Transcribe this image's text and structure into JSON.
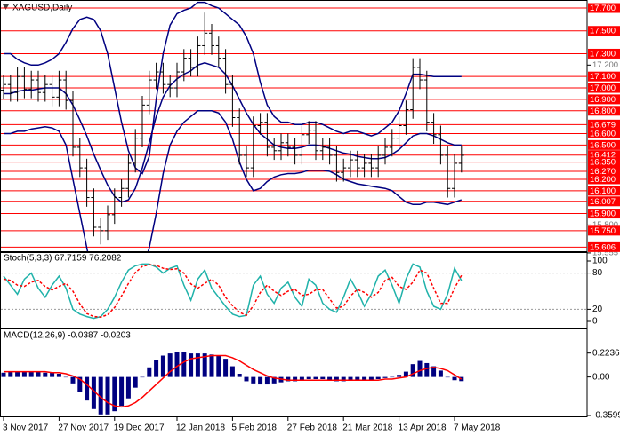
{
  "chart_data": [
    {
      "type": "ohlc",
      "title": "XAGUSD,Daily",
      "color": "#000000",
      "categories": [
        "3 Nov 2017",
        null,
        null,
        null,
        null,
        null,
        null,
        null,
        "27 Nov 2017",
        null,
        null,
        null,
        null,
        null,
        null,
        null,
        "19 Dec 2017",
        null,
        null,
        null,
        null,
        null,
        null,
        null,
        null,
        "12 Jan 2018",
        null,
        null,
        null,
        null,
        null,
        null,
        null,
        "5 Feb 2018",
        null,
        null,
        null,
        null,
        null,
        null,
        null,
        "27 Feb 2018",
        null,
        null,
        null,
        null,
        null,
        null,
        null,
        "21 Mar 2018",
        null,
        null,
        null,
        null,
        null,
        null,
        null,
        "13 Apr 2018",
        null,
        null,
        null,
        null,
        null,
        null,
        null,
        "7 May 2018",
        null
      ],
      "open": [
        16.98,
        17.03,
        16.96,
        17.1,
        16.99,
        17.07,
        16.96,
        17.03,
        16.92,
        17.07,
        16.89,
        16.48,
        16.3,
        16.04,
        15.78,
        15.75,
        15.89,
        16.04,
        16.12,
        16.34,
        16.56,
        16.85,
        17.07,
        17.14,
        17.03,
        17.0,
        17.14,
        17.26,
        17.18,
        17.37,
        17.48,
        17.37,
        17.26,
        17.03,
        16.74,
        16.41,
        16.3,
        16.67,
        16.7,
        16.48,
        16.45,
        16.52,
        16.48,
        16.41,
        16.59,
        16.63,
        16.45,
        16.48,
        16.41,
        16.26,
        16.3,
        16.37,
        16.3,
        16.34,
        16.3,
        16.41,
        16.48,
        16.56,
        16.67,
        16.81,
        17.18,
        17.07,
        16.7,
        16.59,
        16.41,
        16.12,
        16.34
      ],
      "high": [
        17.11,
        17.11,
        17.18,
        17.18,
        17.15,
        17.15,
        17.11,
        17.11,
        17.15,
        17.15,
        16.97,
        16.56,
        16.38,
        16.12,
        15.86,
        15.97,
        16.12,
        16.2,
        16.42,
        16.64,
        16.93,
        17.15,
        17.22,
        17.22,
        17.11,
        17.22,
        17.34,
        17.34,
        17.45,
        17.66,
        17.56,
        17.45,
        17.34,
        17.11,
        16.82,
        16.49,
        16.75,
        16.78,
        16.78,
        16.56,
        16.6,
        16.6,
        16.56,
        16.67,
        16.71,
        16.71,
        16.56,
        16.56,
        16.49,
        16.38,
        16.45,
        16.45,
        16.42,
        16.42,
        16.49,
        16.56,
        16.64,
        16.75,
        16.89,
        17.26,
        17.26,
        17.15,
        16.78,
        16.67,
        16.49,
        16.42,
        16.49
      ],
      "low": [
        16.9,
        16.88,
        16.88,
        16.91,
        16.91,
        16.88,
        16.88,
        16.84,
        16.84,
        16.81,
        16.4,
        16.22,
        15.96,
        15.7,
        15.63,
        15.67,
        15.81,
        15.96,
        16.04,
        16.26,
        16.48,
        16.77,
        16.99,
        16.95,
        16.92,
        16.92,
        17.06,
        17.1,
        17.1,
        17.29,
        17.29,
        17.18,
        16.95,
        16.66,
        16.33,
        16.22,
        16.22,
        16.59,
        16.4,
        16.37,
        16.37,
        16.4,
        16.33,
        16.33,
        16.51,
        16.37,
        16.37,
        16.33,
        16.18,
        16.18,
        16.22,
        16.22,
        16.22,
        16.22,
        16.22,
        16.33,
        16.4,
        16.48,
        16.59,
        16.73,
        16.99,
        16.62,
        16.51,
        16.33,
        16.04,
        16.04,
        16.26
      ],
      "close": [
        17.03,
        16.96,
        17.1,
        16.99,
        17.07,
        16.96,
        17.03,
        16.92,
        17.07,
        16.89,
        16.48,
        16.3,
        16.04,
        15.78,
        15.75,
        15.89,
        16.04,
        16.12,
        16.34,
        16.56,
        16.85,
        17.07,
        17.14,
        17.03,
        17.0,
        17.14,
        17.26,
        17.18,
        17.37,
        17.48,
        17.37,
        17.26,
        17.03,
        16.74,
        16.41,
        16.3,
        16.67,
        16.7,
        16.48,
        16.45,
        16.52,
        16.48,
        16.41,
        16.59,
        16.63,
        16.45,
        16.48,
        16.41,
        16.26,
        16.3,
        16.37,
        16.3,
        16.34,
        16.3,
        16.41,
        16.48,
        16.56,
        16.67,
        16.81,
        17.18,
        17.07,
        16.7,
        16.59,
        16.41,
        16.12,
        16.34,
        16.41
      ],
      "bands": {
        "color": "#000080",
        "upper": [
          17.3,
          17.3,
          17.25,
          17.22,
          17.2,
          17.2,
          17.22,
          17.25,
          17.3,
          17.4,
          17.52,
          17.6,
          17.62,
          17.6,
          17.5,
          17.3,
          17.0,
          16.7,
          16.45,
          16.3,
          16.25,
          16.4,
          16.9,
          17.3,
          17.55,
          17.65,
          17.68,
          17.7,
          17.75,
          17.75,
          17.72,
          17.7,
          17.65,
          17.6,
          17.55,
          17.45,
          17.3,
          17.05,
          16.85,
          16.75,
          16.7,
          16.7,
          16.68,
          16.68,
          16.7,
          16.7,
          16.68,
          16.65,
          16.62,
          16.6,
          16.62,
          16.62,
          16.6,
          16.58,
          16.6,
          16.65,
          16.7,
          16.8,
          16.95,
          17.12,
          17.12,
          17.11,
          17.1,
          17.1,
          17.1,
          17.1,
          17.1
        ],
        "middle": [
          16.95,
          16.95,
          16.97,
          16.98,
          16.98,
          16.99,
          17.0,
          17.0,
          17.0,
          16.95,
          16.85,
          16.72,
          16.58,
          16.42,
          16.28,
          16.15,
          16.05,
          16.0,
          16.02,
          16.12,
          16.3,
          16.52,
          16.75,
          16.92,
          17.02,
          17.08,
          17.12,
          17.15,
          17.2,
          17.22,
          17.2,
          17.18,
          17.12,
          17.02,
          16.9,
          16.78,
          16.68,
          16.6,
          16.55,
          16.5,
          16.48,
          16.47,
          16.47,
          16.48,
          16.5,
          16.5,
          16.49,
          16.47,
          16.45,
          16.43,
          16.42,
          16.4,
          16.39,
          16.38,
          16.38,
          16.39,
          16.42,
          16.46,
          16.52,
          16.58,
          16.6,
          16.6,
          16.58,
          16.55,
          16.52,
          16.5,
          16.5
        ],
        "lower": [
          16.6,
          16.6,
          16.62,
          16.62,
          16.64,
          16.65,
          16.66,
          16.65,
          16.62,
          16.5,
          16.2,
          15.9,
          15.6,
          15.3,
          15.1,
          15.0,
          14.98,
          15.0,
          15.1,
          15.25,
          15.4,
          15.6,
          15.9,
          16.25,
          16.5,
          16.62,
          16.7,
          16.75,
          16.8,
          16.8,
          16.8,
          16.78,
          16.7,
          16.55,
          16.35,
          16.2,
          16.1,
          16.12,
          16.18,
          16.22,
          16.24,
          16.25,
          16.25,
          16.26,
          16.28,
          16.28,
          16.28,
          16.27,
          16.24,
          16.2,
          16.18,
          16.16,
          16.15,
          16.14,
          16.13,
          16.12,
          16.1,
          16.05,
          16.0,
          15.98,
          15.98,
          16.0,
          16.0,
          15.99,
          15.98,
          16.0,
          16.02
        ]
      },
      "level_color": "#ff0000",
      "levels": [
        {
          "value": 17.7,
          "label": "17.700"
        },
        {
          "value": 17.5,
          "label": "17.500"
        },
        {
          "value": 17.3,
          "label": "17.300"
        },
        {
          "value": 17.1,
          "label": "17.100"
        },
        {
          "value": 17,
          "label": "17.000"
        },
        {
          "value": 16.9,
          "label": "16.900"
        },
        {
          "value": 16.8,
          "label": "16.800"
        },
        16.679,
        {
          "value": 16.6,
          "label": "16.600"
        },
        {
          "value": 16.5,
          "label": "16.500"
        },
        16.412,
        {
          "value": 16.35,
          "label": "16.350"
        },
        {
          "value": 16.27,
          "label": "16.270"
        },
        {
          "value": 16.2,
          "label": "16.200"
        },
        {
          "value": 16.1,
          "label": "16.100"
        },
        16.007,
        {
          "value": 15.9,
          "label": "15.900"
        },
        {
          "value": 15.75,
          "label": "15.750"
        },
        15.606
      ],
      "ylim": [
        15.57,
        17.77
      ],
      "yticks": [
        {
          "value": 17.2,
          "label": "17.200"
        },
        {
          "value": 15.8,
          "label": "15.800"
        },
        15.555
      ]
    },
    {
      "type": "stochastic",
      "title": "Stoch(5,3,3) 67.7159 76.2082",
      "color": "#20b2aa",
      "signal_color": "#ff0000",
      "grid": true,
      "values": [
        75,
        60,
        45,
        70,
        80,
        55,
        40,
        60,
        75,
        55,
        20,
        12,
        8,
        5,
        8,
        20,
        40,
        65,
        85,
        92,
        95,
        95,
        90,
        80,
        88,
        92,
        60,
        35,
        70,
        85,
        55,
        40,
        25,
        12,
        8,
        10,
        60,
        75,
        45,
        30,
        55,
        65,
        40,
        25,
        70,
        60,
        30,
        20,
        15,
        40,
        70,
        50,
        25,
        45,
        75,
        85,
        60,
        30,
        70,
        95,
        90,
        50,
        25,
        20,
        45,
        88,
        67.7159
      ],
      "signal": [
        70,
        68,
        60,
        58,
        65,
        68,
        58,
        52,
        58,
        63,
        50,
        29,
        13,
        8,
        7,
        11,
        23,
        42,
        63,
        81,
        91,
        94,
        93,
        88,
        86,
        87,
        80,
        62,
        55,
        63,
        70,
        60,
        40,
        26,
        15,
        10,
        26,
        48,
        60,
        50,
        43,
        50,
        53,
        43,
        45,
        52,
        53,
        37,
        22,
        25,
        42,
        53,
        48,
        40,
        48,
        68,
        73,
        58,
        53,
        65,
        85,
        80,
        55,
        30,
        30,
        55,
        76.2082
      ],
      "ylim": [
        0,
        100
      ],
      "yticks": [
        100,
        80,
        20,
        0
      ]
    },
    {
      "type": "macd",
      "title": "MACD(12,26,9) -0.0387 -0.0203",
      "color": "#000080",
      "signal_color": "#ff0000",
      "values": [
        0.04,
        0.05,
        0.05,
        0.05,
        0.05,
        0.05,
        0.04,
        0.04,
        0.03,
        0.0,
        -0.06,
        -0.14,
        -0.22,
        -0.3,
        -0.35,
        -0.35,
        -0.32,
        -0.27,
        -0.2,
        -0.1,
        0.0,
        0.09,
        0.16,
        0.2,
        0.22,
        0.23,
        0.23,
        0.22,
        0.22,
        0.22,
        0.21,
        0.2,
        0.17,
        0.1,
        0.03,
        -0.04,
        -0.06,
        -0.07,
        -0.07,
        -0.06,
        -0.05,
        -0.04,
        -0.04,
        -0.03,
        -0.02,
        -0.02,
        -0.02,
        -0.03,
        -0.04,
        -0.04,
        -0.03,
        -0.03,
        -0.03,
        -0.03,
        -0.02,
        -0.01,
        0.0,
        0.02,
        0.05,
        0.12,
        0.15,
        0.13,
        0.1,
        0.06,
        0.0,
        -0.03,
        -0.0387
      ],
      "signal": [
        0.05,
        0.05,
        0.05,
        0.05,
        0.05,
        0.05,
        0.05,
        0.04,
        0.04,
        0.03,
        0.01,
        -0.02,
        -0.07,
        -0.13,
        -0.19,
        -0.24,
        -0.27,
        -0.28,
        -0.27,
        -0.24,
        -0.19,
        -0.13,
        -0.07,
        -0.01,
        0.05,
        0.1,
        0.14,
        0.17,
        0.18,
        0.19,
        0.2,
        0.2,
        0.2,
        0.18,
        0.15,
        0.11,
        0.07,
        0.04,
        0.01,
        -0.01,
        -0.02,
        -0.03,
        -0.03,
        -0.03,
        -0.03,
        -0.03,
        -0.03,
        -0.03,
        -0.03,
        -0.03,
        -0.03,
        -0.03,
        -0.03,
        -0.03,
        -0.03,
        -0.02,
        -0.02,
        -0.01,
        0.0,
        0.03,
        0.06,
        0.08,
        0.09,
        0.08,
        0.06,
        0.02,
        -0.0203
      ],
      "ylim": [
        -0.3599,
        0.42
      ],
      "yticks": [
        0.2236,
        {
          "value": 0,
          "label": "0.00"
        },
        -0.3599
      ]
    }
  ]
}
